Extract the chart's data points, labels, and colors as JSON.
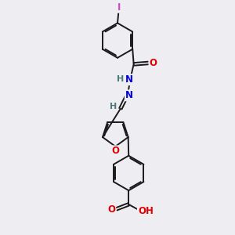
{
  "background_color": "#eeeef2",
  "bond_color": "#1a1a1a",
  "bond_width": 1.4,
  "dbo": 0.06,
  "figsize": [
    3.0,
    3.0
  ],
  "dpi": 100,
  "atom_colors": {
    "O": "#e00000",
    "N": "#0000e0",
    "I": "#cc44cc",
    "C": "#1a1a1a",
    "H": "#4a7a7a"
  },
  "font_size": 8.5,
  "font_size_h": 8.0,
  "font_size_i": 8.5
}
